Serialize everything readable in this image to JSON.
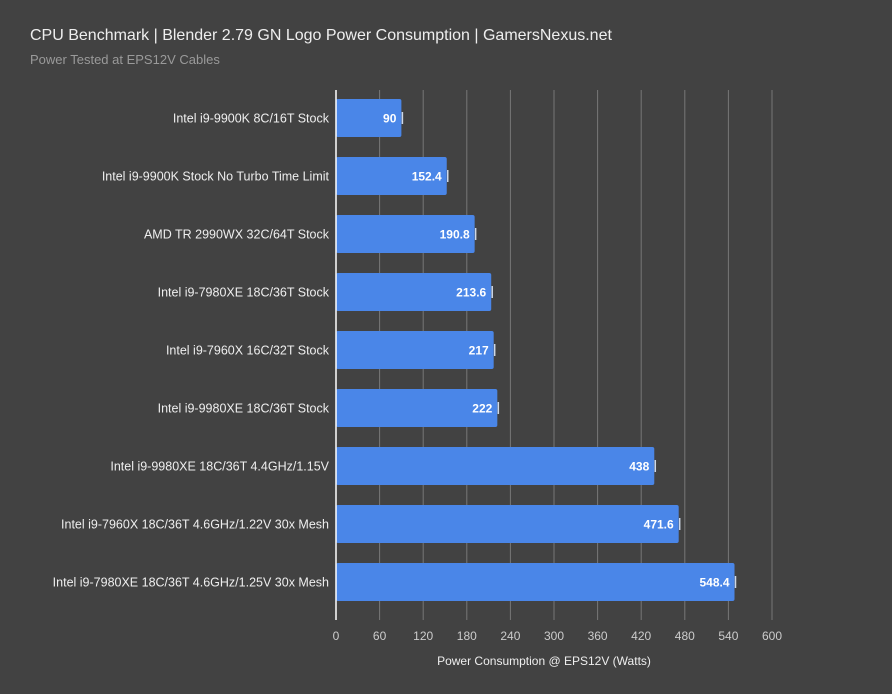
{
  "chart_data": {
    "type": "bar",
    "orientation": "horizontal",
    "title": "CPU Benchmark | Blender 2.79 GN Logo Power Consumption | GamersNexus.net",
    "subtitle": "Power Tested at EPS12V Cables",
    "xlabel": "Power Consumption @ EPS12V (Watts)",
    "ylabel": "",
    "xlim": [
      0,
      600
    ],
    "ticks": [
      0,
      60,
      120,
      180,
      240,
      300,
      360,
      420,
      480,
      540,
      600
    ],
    "grid": true,
    "categories": [
      "Intel i9-9900K 8C/16T Stock",
      "Intel i9-9900K Stock No Turbo Time Limit",
      "AMD TR 2990WX 32C/64T Stock",
      "Intel i9-7980XE 18C/36T Stock",
      "Intel i9-7960X 16C/32T Stock",
      "Intel i9-9980XE 18C/36T Stock",
      "Intel i9-9980XE 18C/36T 4.4GHz/1.15V",
      "Intel i9-7960X 18C/36T 4.6GHz/1.22V 30x Mesh",
      "Intel i9-7980XE 18C/36T 4.6GHz/1.25V 30x Mesh"
    ],
    "values": [
      90,
      152.4,
      190.8,
      213.6,
      217,
      222,
      438,
      471.6,
      548.4
    ],
    "labels": [
      "90",
      "152.4",
      "190.8",
      "213.6",
      "217",
      "222",
      "438",
      "471.6",
      "548.4"
    ],
    "colors": {
      "bar": "#4a86e8",
      "background": "#424242",
      "grid": "#777777",
      "text": "#eeeeee"
    }
  }
}
